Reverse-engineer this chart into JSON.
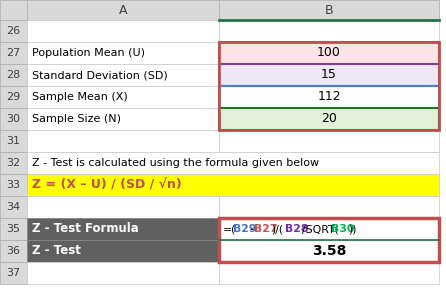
{
  "col_header_A": "A",
  "col_header_B": "B",
  "rows_data": {
    "27": {
      "label": "Population Mean (U)",
      "value": "100",
      "bg": "#fce4e4",
      "border_color": "#c0504d"
    },
    "28": {
      "label": "Standard Deviation (SD)",
      "value": "15",
      "bg": "#ede7f6",
      "border_color": "#7b3f9e"
    },
    "29": {
      "label": "Sample Mean (X)",
      "value": "112",
      "bg": "#ffffff",
      "border_color": "#4f81bd"
    },
    "30": {
      "label": "Sample Size (N)",
      "value": "20",
      "bg": "#e2f0d9",
      "border_color": "#1a7a1a"
    }
  },
  "row32_text": "Z - Test is calculated using the formula given below",
  "row33_formula": "Z = (X – U) / (SD / √n)",
  "row33_bg": "#ffff00",
  "row35_label": "Z - Test Formula",
  "row36_label": "Z - Test",
  "row36_value": "3.58",
  "dark_gray_bg": "#606060",
  "col_b_header_border": "#217346",
  "red_border": "#c0504d",
  "purple_border": "#7b3f9e",
  "blue_border": "#4f81bd",
  "green_border": "#1a7a1a",
  "formula_segments": [
    {
      "text": "=(",
      "color": "#000000",
      "bold": false
    },
    {
      "text": "B29",
      "color": "#4472c4",
      "bold": true
    },
    {
      "text": "-",
      "color": "#000000",
      "bold": false
    },
    {
      "text": "B27",
      "color": "#c0504d",
      "bold": true
    },
    {
      "text": ")/(",
      "color": "#000000",
      "bold": false
    },
    {
      "text": "B28",
      "color": "#7030a0",
      "bold": true
    },
    {
      "text": "/SQRT(",
      "color": "#000000",
      "bold": false
    },
    {
      "text": "B30",
      "color": "#00b050",
      "bold": true
    },
    {
      "text": "))",
      "color": "#000000",
      "bold": false
    }
  ]
}
